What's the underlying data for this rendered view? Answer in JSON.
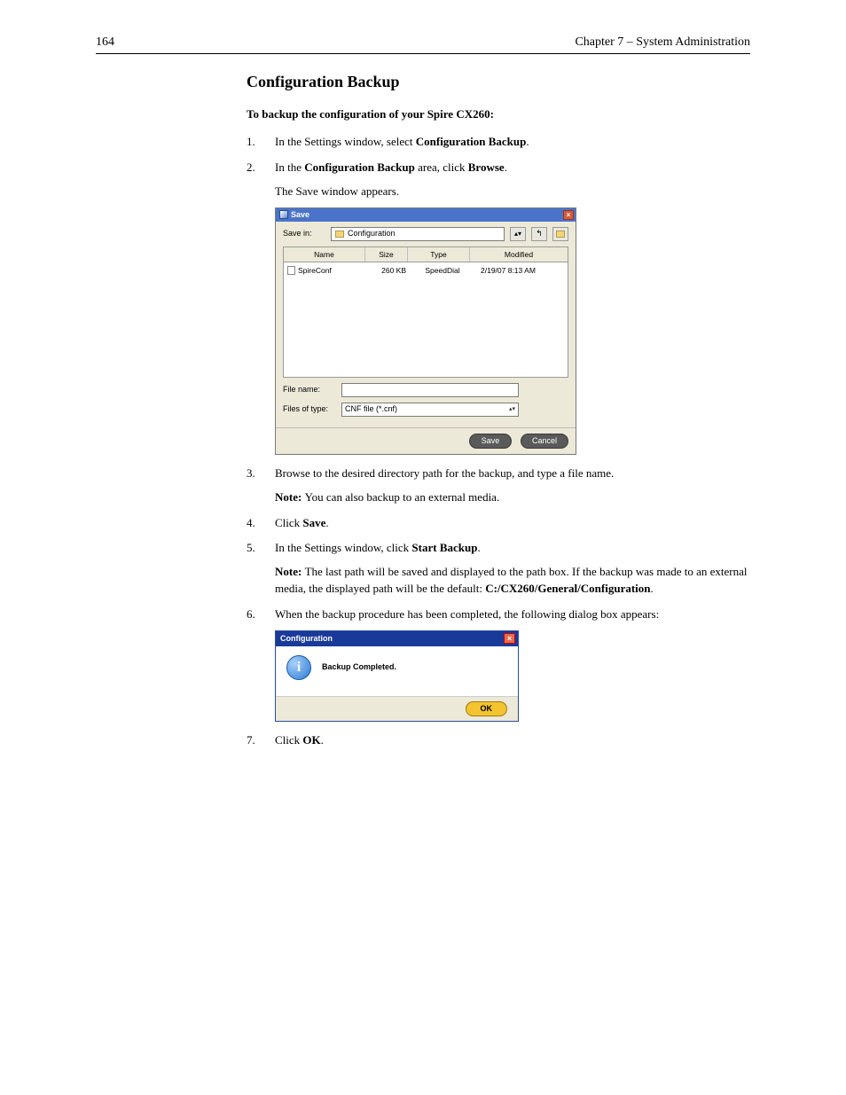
{
  "header": {
    "page_number": "164",
    "chapter_title": "Chapter 7 – System Administration"
  },
  "section_title": "Configuration Backup",
  "intro": "To backup the configuration of your Spire CX260:",
  "steps": {
    "s1": {
      "prefix": "In the Settings window, select ",
      "bold": "Configuration Backup",
      "suffix": "."
    },
    "s2": {
      "line1_prefix": "In the ",
      "line1_bold1": "Configuration Backup",
      "line1_mid": " area, click ",
      "line1_bold2": "Browse",
      "line1_suffix": ".",
      "line2": "The Save window appears."
    },
    "s3": {
      "line1": "Browse to the desired directory path for the backup, and type a file name.",
      "note_label": "Note:  ",
      "note_text": "You can also backup to an external media."
    },
    "s4": {
      "prefix": "Click ",
      "bold": "Save",
      "suffix": "."
    },
    "s5": {
      "line1_prefix": "In the Settings window, click ",
      "line1_bold": "Start Backup",
      "line1_suffix": ".",
      "note_label": "Note:  ",
      "note_text_1": "The last path will be saved and displayed to the path box. If the backup was made to an external media, the displayed path will be the default: ",
      "note_bold": "C:/CX260/General/Configuration",
      "note_suffix": "."
    },
    "s6": {
      "text": "When the backup procedure has been completed, the following dialog box appears:"
    },
    "s7": {
      "prefix": "Click ",
      "bold": "OK",
      "suffix": "."
    }
  },
  "save_dialog": {
    "title": "Save",
    "save_in_label": "Save in:",
    "save_in_value": "Configuration",
    "columns": {
      "name": "Name",
      "size": "Size",
      "type": "Type",
      "modified": "Modified"
    },
    "row": {
      "name": "SpireConf",
      "size": "260 KB",
      "type": "SpeedDial",
      "modified": "2/19/07 8:13 AM"
    },
    "file_name_label": "File name:",
    "file_name_value": "",
    "files_of_type_label": "Files of type:",
    "files_of_type_value": "CNF file (*.cnf)",
    "save_btn": "Save",
    "cancel_btn": "Cancel",
    "close_glyph": "×",
    "up_glyph": "⬑"
  },
  "conf_dialog": {
    "title": "Configuration",
    "message": "Backup Completed.",
    "ok_btn": "OK",
    "close_glyph": "×",
    "info_glyph": "i"
  }
}
